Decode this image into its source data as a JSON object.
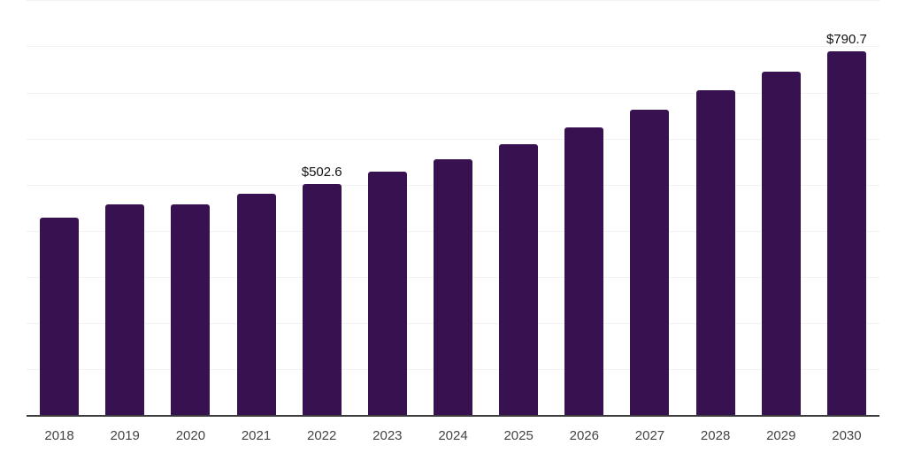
{
  "chart_data": {
    "type": "bar",
    "title": "",
    "xlabel": "",
    "ylabel": "",
    "categories": [
      "2018",
      "2019",
      "2020",
      "2021",
      "2022",
      "2023",
      "2024",
      "2025",
      "2026",
      "2027",
      "2028",
      "2029",
      "2030"
    ],
    "values": [
      431.0,
      459.6,
      458.5,
      481.5,
      502.6,
      529.5,
      557.0,
      590.2,
      626.1,
      664.0,
      706.2,
      747.1,
      790.7
    ],
    "labeled_points": [
      {
        "category": "2022",
        "label": "$502.6"
      },
      {
        "category": "2030",
        "label": "$790.7"
      }
    ],
    "ylim": [
      0,
      900
    ],
    "gridline_step": 100,
    "grid": true,
    "y_tick_labels_shown": false,
    "legend_position": "none",
    "colors": {
      "bar": "#371150",
      "axis_line": "#3c3c3c",
      "gridline": "#f2f2f2",
      "value_label": "#111111",
      "tick_label": "#444444",
      "background": "#ffffff"
    }
  }
}
